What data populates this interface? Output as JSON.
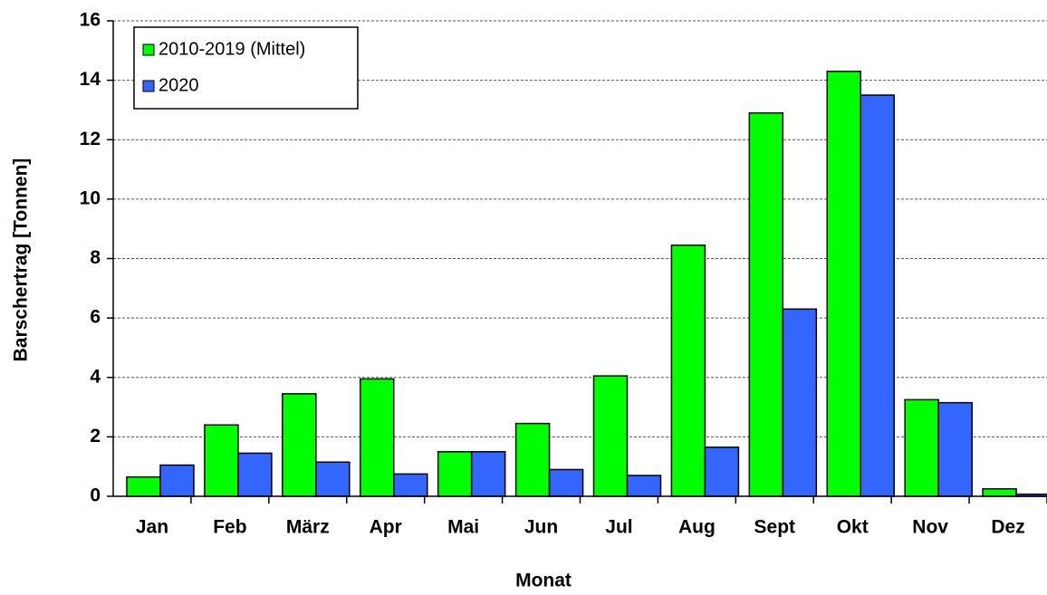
{
  "chart_data": {
    "type": "bar",
    "x_label": "Monat",
    "y_label": "Barschertrag [Tonnen]",
    "categories": [
      "Jan",
      "Feb",
      "März",
      "Apr",
      "Mai",
      "Jun",
      "Jul",
      "Aug",
      "Sept",
      "Okt",
      "Nov",
      "Dez"
    ],
    "series": [
      {
        "name": "2010-2019 (Mittel)",
        "color": "#00ff00",
        "values": [
          0.65,
          2.4,
          3.45,
          3.95,
          1.5,
          2.45,
          4.05,
          8.45,
          12.9,
          14.3,
          3.25,
          0.25
        ]
      },
      {
        "name": "2020",
        "color": "#3366ff",
        "values": [
          1.05,
          1.45,
          1.15,
          0.75,
          1.5,
          0.9,
          0.7,
          1.65,
          6.3,
          13.5,
          3.15,
          0.07
        ]
      }
    ],
    "ylim": [
      0,
      16
    ],
    "yticks": [
      0,
      2,
      4,
      6,
      8,
      10,
      12,
      14,
      16
    ],
    "grid": true,
    "legend": "upper left"
  }
}
